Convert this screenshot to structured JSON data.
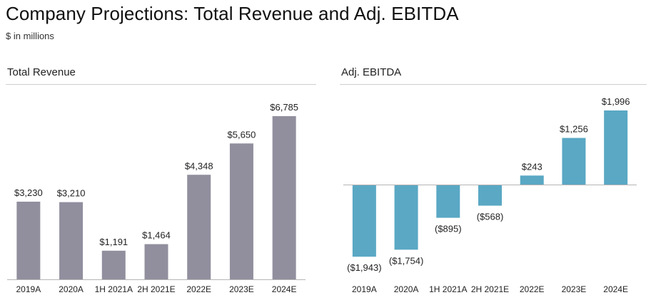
{
  "header": {
    "title": "Company Projections: Total Revenue and Adj. EBITDA",
    "subtitle": "$ in millions"
  },
  "colors": {
    "revenue_bar": "#918f9e",
    "ebitda_bar": "#5aa8c4",
    "axis": "#b5b5b5"
  },
  "chart_data": [
    {
      "type": "bar",
      "title": "Total Revenue",
      "categories": [
        "2019A",
        "2020A",
        "1H 2021A",
        "2H 2021E",
        "2022E",
        "2023E",
        "2024E"
      ],
      "values": [
        3230,
        3210,
        1191,
        1464,
        4348,
        5650,
        6785
      ],
      "value_labels": [
        "$3,230",
        "$3,210",
        "$1,191",
        "$1,464",
        "$4,348",
        "$5,650",
        "$6,785"
      ],
      "ylim": [
        0,
        7500
      ],
      "grid": false,
      "legend": "none"
    },
    {
      "type": "bar",
      "title": "Adj. EBITDA",
      "categories": [
        "2019A",
        "2020A",
        "1H 2021A",
        "2H 2021E",
        "2022E",
        "2023E",
        "2024E"
      ],
      "values": [
        -1943,
        -1754,
        -895,
        -568,
        243,
        1256,
        1996
      ],
      "value_labels": [
        "($1,943)",
        "($1,754)",
        "($895)",
        "($568)",
        "$243",
        "$1,256",
        "$1,996"
      ],
      "ylim": [
        -2500,
        2000
      ],
      "grid": false,
      "legend": "none"
    }
  ]
}
